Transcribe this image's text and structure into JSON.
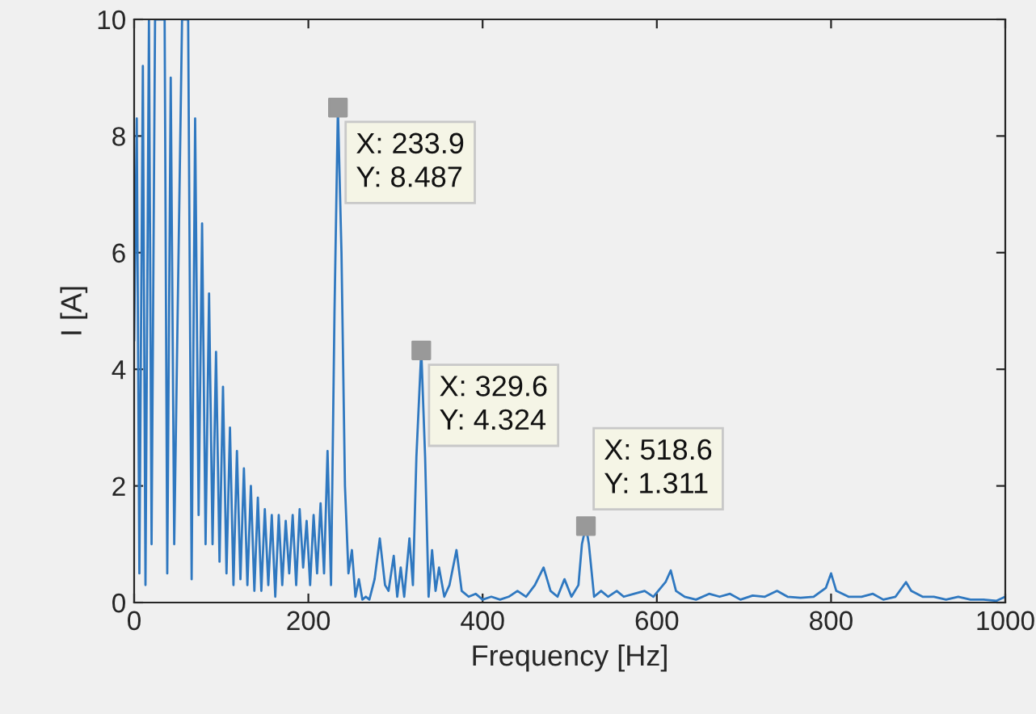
{
  "chart_data": {
    "type": "line",
    "xlabel": "Frequency [Hz]",
    "ylabel": "I [A]",
    "xlim": [
      0,
      1000
    ],
    "ylim": [
      0,
      10
    ],
    "xticks": [
      0,
      200,
      400,
      600,
      800,
      1000
    ],
    "yticks": [
      0,
      2,
      4,
      6,
      8,
      10
    ],
    "grid": false,
    "legend": false,
    "series": [
      {
        "color": "#2f78c0",
        "x": [
          0,
          3,
          6,
          10,
          13,
          17,
          20,
          24,
          27,
          31,
          35,
          38,
          42,
          46,
          55,
          58,
          62,
          66,
          70,
          74,
          78,
          82,
          86,
          90,
          94,
          98,
          102,
          106,
          110,
          114,
          118,
          122,
          126,
          130,
          134,
          138,
          142,
          146,
          150,
          154,
          158,
          162,
          166,
          170,
          174,
          178,
          182,
          186,
          190,
          194,
          198,
          202,
          206,
          210,
          214,
          218,
          222,
          226,
          230,
          233.9,
          238,
          242,
          246,
          250,
          254,
          258,
          262,
          266,
          270,
          276,
          282,
          288,
          292,
          298,
          302,
          306,
          310,
          316,
          320,
          324,
          329.6,
          334,
          338,
          342,
          346,
          350,
          356,
          362,
          370,
          376,
          384,
          392,
          400,
          410,
          420,
          430,
          440,
          450,
          460,
          470,
          478,
          486,
          494,
          502,
          510,
          514,
          518.6,
          522,
          528,
          536,
          544,
          554,
          562,
          574,
          586,
          596,
          610,
          616,
          622,
          632,
          645,
          660,
          672,
          684,
          696,
          710,
          724,
          738,
          750,
          765,
          780,
          794,
          800,
          806,
          820,
          835,
          848,
          860,
          874,
          886,
          892,
          905,
          918,
          932,
          946,
          960,
          975,
          990,
          1000
        ],
        "values": [
          4.5,
          8.3,
          0.5,
          9.2,
          0.3,
          10,
          1,
          10,
          10,
          10,
          10,
          0.5,
          9,
          1,
          10,
          10,
          10,
          0.4,
          8.3,
          1.5,
          6.5,
          1,
          5.3,
          1,
          4.3,
          0.7,
          3.7,
          0.5,
          3.0,
          0.3,
          2.6,
          0.4,
          2.3,
          0.3,
          2.0,
          0.2,
          1.8,
          0.2,
          1.6,
          0.3,
          1.5,
          0.1,
          1.5,
          0.3,
          1.4,
          0.5,
          1.5,
          0.3,
          1.6,
          0.6,
          1.4,
          0.3,
          1.5,
          0.5,
          1.7,
          0.5,
          2.6,
          0.3,
          5.0,
          8.487,
          6.0,
          2.0,
          0.5,
          0.9,
          0.1,
          0.4,
          0.05,
          0.1,
          0.05,
          0.4,
          1.1,
          0.3,
          0.2,
          0.8,
          0.1,
          0.6,
          0.1,
          1.1,
          0.3,
          2.5,
          4.324,
          2.5,
          0.1,
          0.9,
          0.2,
          0.6,
          0.1,
          0.3,
          0.9,
          0.2,
          0.1,
          0.15,
          0.05,
          0.1,
          0.05,
          0.1,
          0.2,
          0.1,
          0.3,
          0.6,
          0.2,
          0.1,
          0.4,
          0.1,
          0.3,
          1.0,
          1.311,
          1.0,
          0.1,
          0.2,
          0.1,
          0.2,
          0.1,
          0.15,
          0.2,
          0.1,
          0.35,
          0.55,
          0.2,
          0.1,
          0.05,
          0.15,
          0.1,
          0.15,
          0.05,
          0.12,
          0.1,
          0.2,
          0.1,
          0.08,
          0.1,
          0.25,
          0.5,
          0.2,
          0.1,
          0.1,
          0.15,
          0.05,
          0.1,
          0.35,
          0.2,
          0.1,
          0.1,
          0.05,
          0.1,
          0.05,
          0.05,
          0.03,
          0.1
        ]
      },
      {
        "type": "scatter",
        "color": "#999999",
        "marker": "square",
        "x": [
          233.9,
          329.6,
          518.6
        ],
        "values": [
          8.487,
          4.324,
          1.311
        ]
      }
    ],
    "annotations": [
      {
        "text": "X: 233.9\nY: 8.487",
        "x": 233.9,
        "y": 8.487
      },
      {
        "text": "X: 329.6\nY: 4.324",
        "x": 329.6,
        "y": 4.324
      },
      {
        "text": "X: 518.6\nY: 1.311",
        "x": 518.6,
        "y": 1.311
      }
    ]
  }
}
